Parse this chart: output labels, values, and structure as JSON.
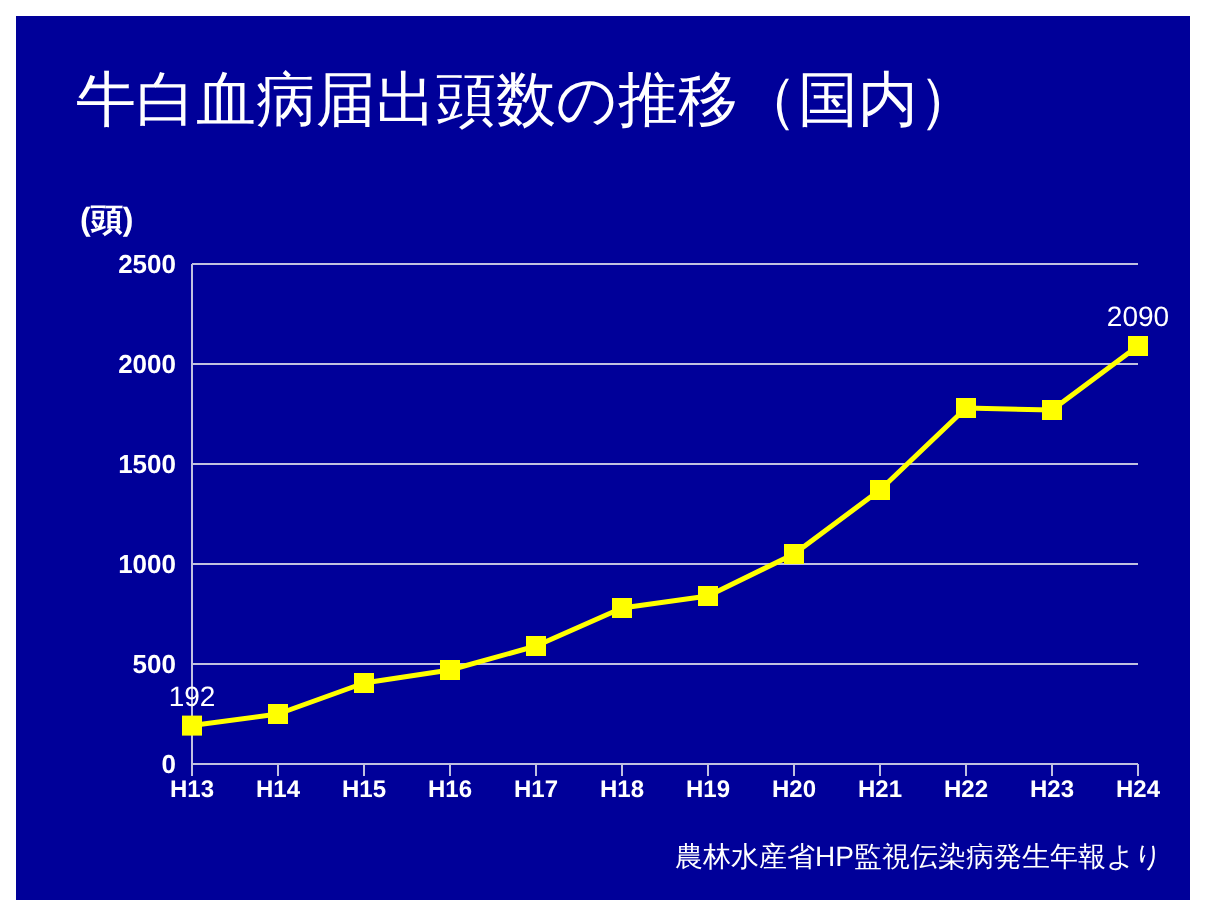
{
  "chart_data": {
    "type": "line",
    "title": "牛白血病届出頭数の推移（国内）",
    "ylabel": "(頭)",
    "categories": [
      "H13",
      "H14",
      "H15",
      "H16",
      "H17",
      "H18",
      "H19",
      "H20",
      "H21",
      "H22",
      "H23",
      "H24"
    ],
    "series": [
      {
        "color": "#ffff00",
        "values": [
          192,
          250,
          405,
          470,
          590,
          780,
          840,
          1050,
          1370,
          1780,
          1770,
          2090
        ],
        "value_labels": [
          "192",
          null,
          null,
          null,
          null,
          null,
          null,
          null,
          null,
          null,
          null,
          "2090"
        ]
      }
    ],
    "ylim": [
      0,
      2500
    ],
    "yticks": [
      0,
      500,
      1000,
      1500,
      2000,
      2500
    ],
    "grid": "y",
    "marker": "square",
    "line_style": "solid",
    "legend": false,
    "annotations": [
      "農林水産省HP監視伝染病発生年報より"
    ]
  }
}
